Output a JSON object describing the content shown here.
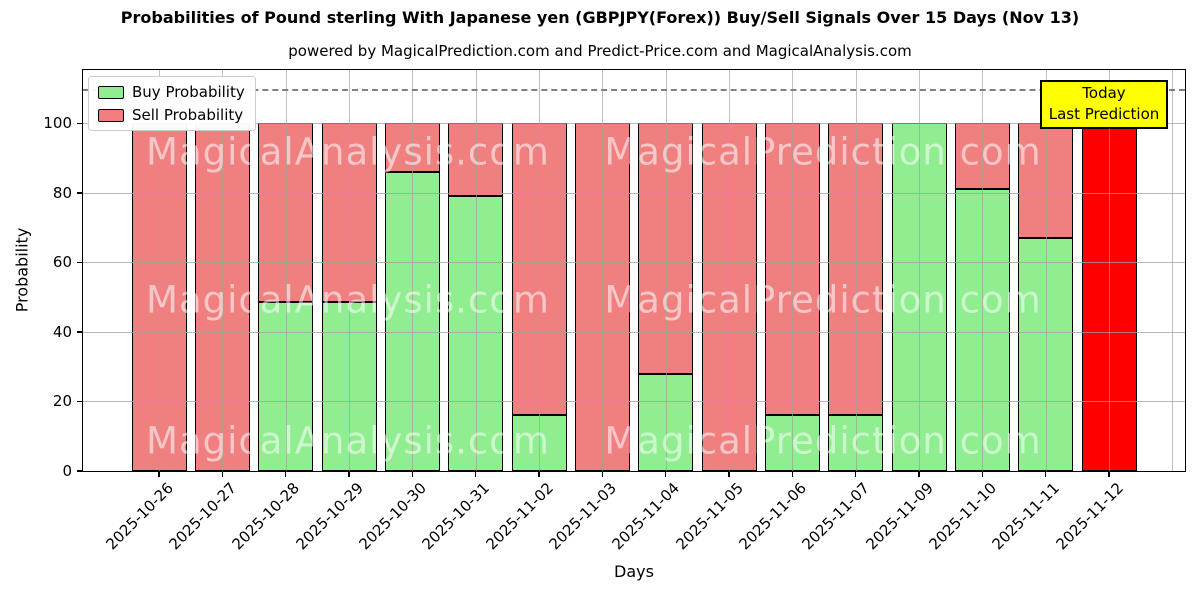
{
  "title": "Probabilities of Pound sterling With Japanese yen (GBPJPY(Forex)) Buy/Sell Signals Over 15 Days (Nov 13)",
  "subtitle": "powered by MagicalPrediction.com and Predict-Price.com and MagicalAnalysis.com",
  "legend": {
    "buy_label": "Buy Probability",
    "sell_label": "Sell Probability"
  },
  "annotation_box": {
    "line1": "Today",
    "line2": "Last Prediction"
  },
  "axes": {
    "xlabel": "Days",
    "ylabel": "Probability",
    "ytick_labels": [
      "0",
      "20",
      "40",
      "60",
      "80",
      "100"
    ]
  },
  "colors": {
    "buy": "#90EE90",
    "sell": "#F08080",
    "today_bar": "#FF0000",
    "bar_edge": "#000000",
    "annotation_bg": "#FFFF00",
    "grid": "#A0A0A0",
    "dashed_line": "#7F7F7F"
  },
  "watermark": {
    "texts": [
      "MagicalAnalysis.com",
      "MagicalPrediction.com"
    ]
  },
  "chart_data": {
    "type": "bar",
    "stacked": true,
    "title": "Probabilities of Pound sterling With Japanese yen (GBPJPY(Forex)) Buy/Sell Signals Over 15 Days (Nov 13)",
    "xlabel": "Days",
    "ylabel": "Probability",
    "ylim": [
      0,
      115
    ],
    "yticks": [
      0,
      20,
      40,
      60,
      80,
      100
    ],
    "grid": true,
    "legend_position": "upper left",
    "dashed_line_y": 110,
    "categories": [
      "2025-10-26",
      "2025-10-27",
      "2025-10-28",
      "2025-10-29",
      "2025-10-30",
      "2025-10-31",
      "2025-11-02",
      "2025-11-03",
      "2025-11-04",
      "2025-11-05",
      "2025-11-06",
      "2025-11-07",
      "2025-11-09",
      "2025-11-10",
      "2025-11-11",
      "2025-11-12"
    ],
    "series": [
      {
        "name": "Buy Probability",
        "color": "#90EE90",
        "values": [
          0,
          0,
          48.5,
          48.5,
          86,
          79,
          16,
          0,
          28,
          0,
          16,
          16,
          100,
          81,
          67,
          0
        ]
      },
      {
        "name": "Sell Probability",
        "color": "#F08080",
        "values": [
          100,
          100,
          51.5,
          51.5,
          14,
          21,
          84,
          100,
          72,
          100,
          84,
          84,
          0,
          19,
          33,
          100
        ]
      }
    ],
    "highlight": {
      "category": "2025-11-12",
      "color": "#FF0000",
      "note": "Today / Last Prediction"
    }
  }
}
